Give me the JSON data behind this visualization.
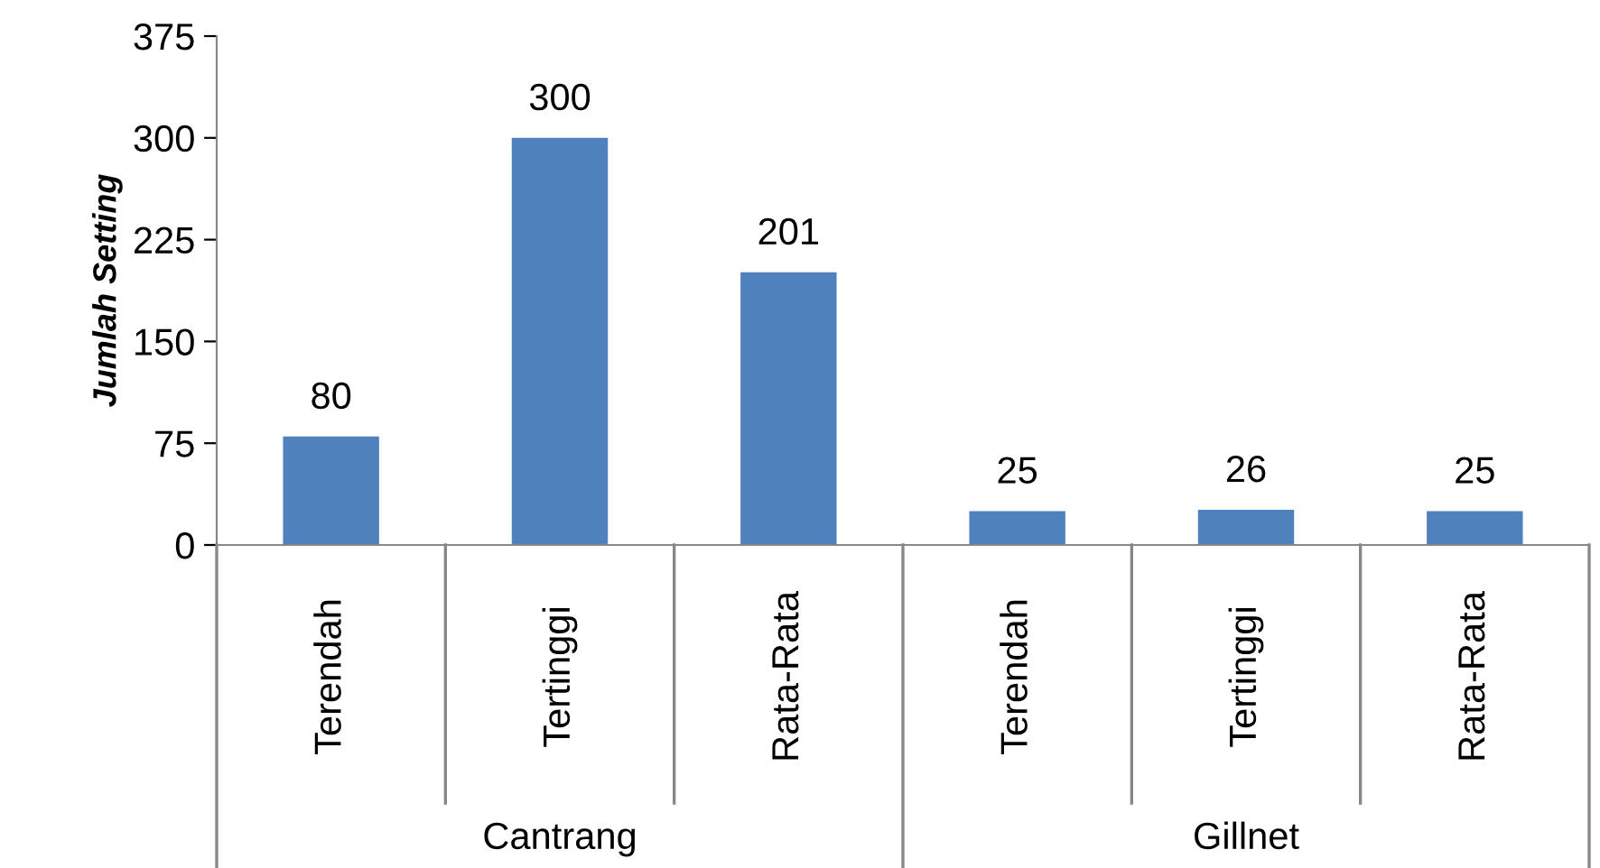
{
  "chart_data": {
    "type": "bar",
    "ylabel": "Jumlah Setting",
    "categories": [
      "Terendah",
      "Tertinggi",
      "Rata-Rata",
      "Terendah",
      "Tertinggi",
      "Rata-Rata"
    ],
    "values": [
      80,
      300,
      201,
      25,
      26,
      25
    ],
    "color": "#4f81bd",
    "ylim": [
      0,
      375
    ],
    "yticks": [
      0,
      75,
      150,
      225,
      300,
      375
    ],
    "grid": false,
    "data_labels": true,
    "annotations": [
      "Cantrang",
      "Gillnet"
    ]
  }
}
